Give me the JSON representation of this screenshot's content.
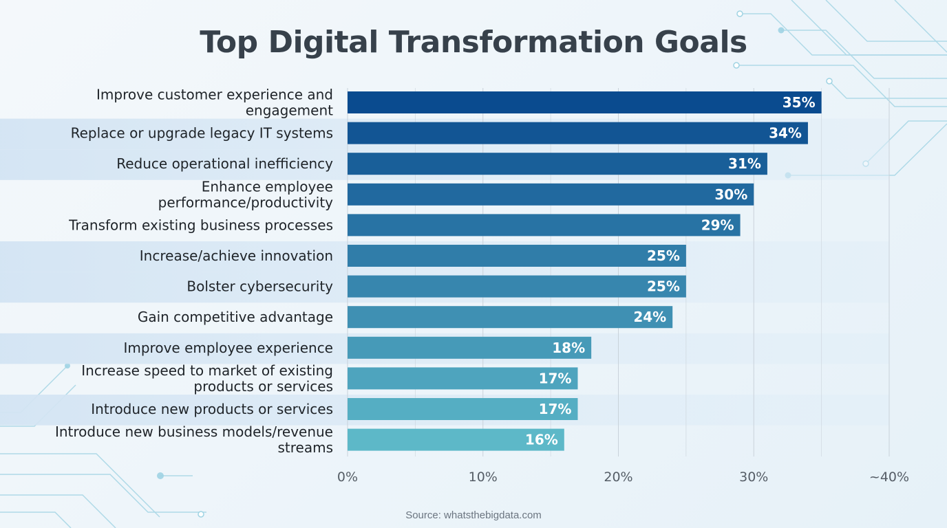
{
  "title": "Top Digital Transformation Goals",
  "source": "Source: whatsthebigdata.com",
  "chart_data": {
    "type": "bar",
    "orientation": "horizontal",
    "title": "Top Digital Transformation Goals",
    "xlabel": "",
    "ylabel": "",
    "xlim": [
      0,
      40
    ],
    "grid": true,
    "categories": [
      [
        "Improve customer experience and",
        "engagement"
      ],
      [
        "Replace or upgrade legacy IT systems"
      ],
      [
        "Reduce operational inefficiency"
      ],
      [
        "Enhance employee",
        "performance/productivity"
      ],
      [
        "Transform existing business processes"
      ],
      [
        "Increase/achieve innovation"
      ],
      [
        "Bolster cybersecurity"
      ],
      [
        "Gain competitive advantage"
      ],
      [
        "Improve employee experience"
      ],
      [
        "Increase speed to market of existing",
        "products or services"
      ],
      [
        "Introduce new products or services"
      ],
      [
        "Introduce new business models/revenue",
        "streams"
      ]
    ],
    "values": [
      35,
      34,
      31,
      30,
      29,
      25,
      25,
      24,
      18,
      17,
      17,
      16
    ],
    "value_labels": [
      "35%",
      "34%",
      "31%",
      "30%",
      "29%",
      "25%",
      "25%",
      "24%",
      "18%",
      "17%",
      "17%",
      "16%"
    ],
    "ticks": [
      0,
      10,
      20,
      30,
      40
    ],
    "tick_labels": [
      "0%",
      "10%",
      "20%",
      "30%",
      "~40%"
    ],
    "colors": {
      "bar_start": "#0a4b8f",
      "bar_end": "#5db8c8",
      "band": "#d8e7f4",
      "grid": "#c9d2da"
    }
  }
}
